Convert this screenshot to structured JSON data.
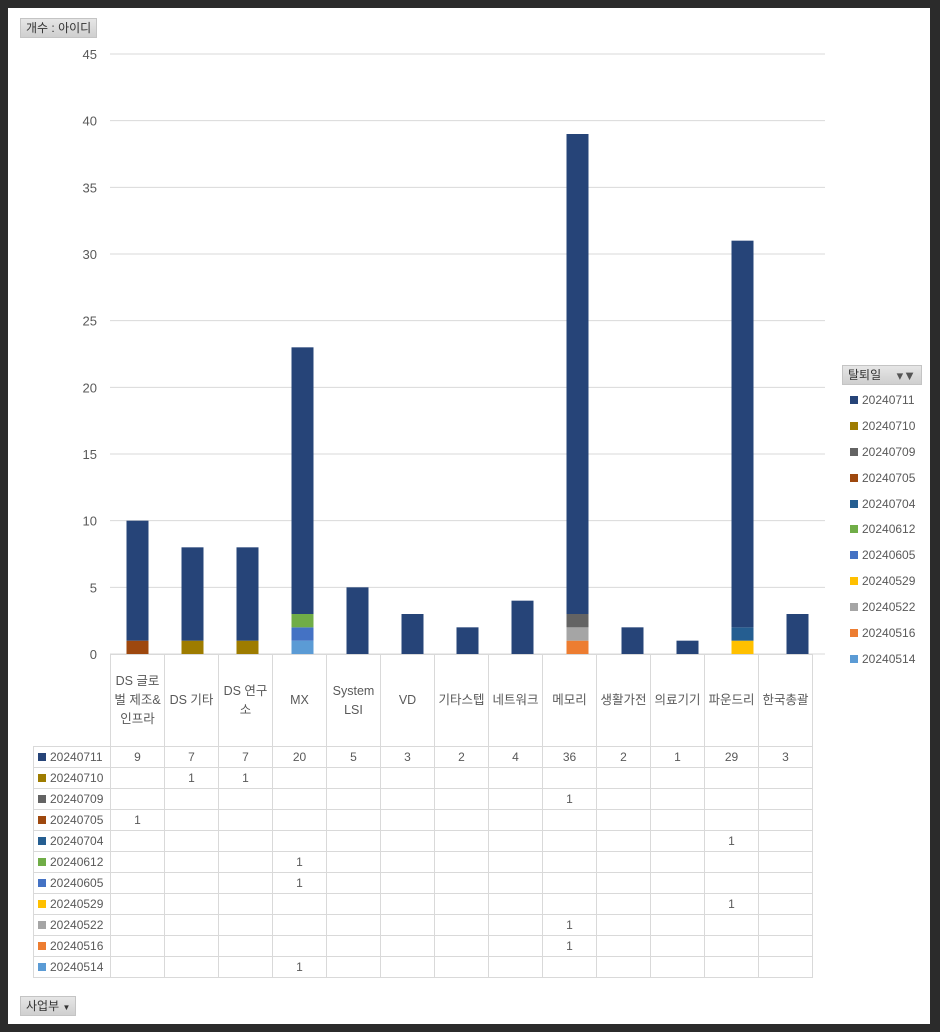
{
  "value_field_label": "개수 : 아이디",
  "legend_field_label": "탈퇴일",
  "axis_field_label": "사업부",
  "chart_data": {
    "type": "bar",
    "stacked": true,
    "title": "",
    "xlabel": "",
    "ylabel": "",
    "ylim": [
      0,
      45
    ],
    "yticks": [
      0,
      5,
      10,
      15,
      20,
      25,
      30,
      35,
      40,
      45
    ],
    "grid": true,
    "legend_position": "right",
    "categories": [
      "DS 글로벌 제조&인프라",
      "DS 기타",
      "DS 연구소",
      "MX",
      "System LSI",
      "VD",
      "기타스텝",
      "네트워크",
      "메모리",
      "생활가전",
      "의료기기",
      "파운드리",
      "한국총괄"
    ],
    "series": [
      {
        "name": "20240711",
        "color": "#264478",
        "values": [
          9,
          7,
          7,
          20,
          5,
          3,
          2,
          4,
          36,
          2,
          1,
          29,
          3
        ]
      },
      {
        "name": "20240710",
        "color": "#9E7C00",
        "values": [
          0,
          1,
          1,
          0,
          0,
          0,
          0,
          0,
          0,
          0,
          0,
          0,
          0
        ]
      },
      {
        "name": "20240709",
        "color": "#636363",
        "values": [
          0,
          0,
          0,
          0,
          0,
          0,
          0,
          0,
          1,
          0,
          0,
          0,
          0
        ]
      },
      {
        "name": "20240705",
        "color": "#9E480E",
        "values": [
          1,
          0,
          0,
          0,
          0,
          0,
          0,
          0,
          0,
          0,
          0,
          0,
          0
        ]
      },
      {
        "name": "20240704",
        "color": "#255E91",
        "values": [
          0,
          0,
          0,
          0,
          0,
          0,
          0,
          0,
          0,
          0,
          0,
          1,
          0
        ]
      },
      {
        "name": "20240612",
        "color": "#70AD47",
        "values": [
          0,
          0,
          0,
          1,
          0,
          0,
          0,
          0,
          0,
          0,
          0,
          0,
          0
        ]
      },
      {
        "name": "20240605",
        "color": "#4472C4",
        "values": [
          0,
          0,
          0,
          1,
          0,
          0,
          0,
          0,
          0,
          0,
          0,
          0,
          0
        ]
      },
      {
        "name": "20240529",
        "color": "#FFC000",
        "values": [
          0,
          0,
          0,
          0,
          0,
          0,
          0,
          0,
          0,
          0,
          0,
          1,
          0
        ]
      },
      {
        "name": "20240522",
        "color": "#A5A5A5",
        "values": [
          0,
          0,
          0,
          0,
          0,
          0,
          0,
          0,
          1,
          0,
          0,
          0,
          0
        ]
      },
      {
        "name": "20240516",
        "color": "#ED7D31",
        "values": [
          0,
          0,
          0,
          0,
          0,
          0,
          0,
          0,
          1,
          0,
          0,
          0,
          0
        ]
      },
      {
        "name": "20240514",
        "color": "#5B9BD5",
        "values": [
          0,
          0,
          0,
          1,
          0,
          0,
          0,
          0,
          0,
          0,
          0,
          0,
          0
        ]
      }
    ]
  }
}
